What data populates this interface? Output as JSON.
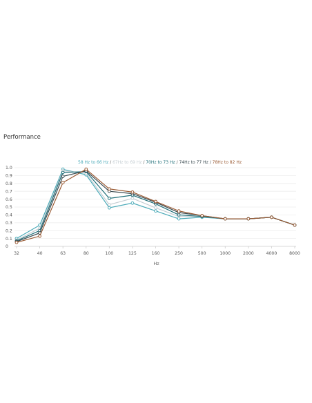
{
  "page": {
    "title": "Performance"
  },
  "chart_data": {
    "type": "line",
    "categories": [
      "32",
      "40",
      "63",
      "80",
      "100",
      "125",
      "160",
      "250",
      "500",
      "1000",
      "2000",
      "4000",
      "8000"
    ],
    "xlabel": "Hz",
    "ylabel": "",
    "ylim": [
      0,
      1.0
    ],
    "yticks": [
      0,
      0.1,
      0.2,
      0.3,
      0.4,
      0.5,
      0.6,
      0.7,
      0.8,
      0.9,
      1.0
    ],
    "ytick_labels": [
      "0",
      "0.1",
      "0.2",
      "0.3",
      "0.4",
      "0.5",
      "0.6",
      "0.7",
      "0.8",
      "0.9",
      "1.0"
    ],
    "legend_position": "top-center",
    "legend_separator": "/",
    "grid": true,
    "series": [
      {
        "name": "58 Hz to 66 Hz",
        "color": "#4aaab8",
        "values": [
          0.1,
          0.27,
          0.98,
          0.91,
          0.49,
          0.55,
          0.45,
          0.35,
          0.37,
          0.35,
          0.35,
          0.37,
          0.27
        ]
      },
      {
        "name": "67Hz to 69 Hz",
        "color": "#c4cdd2",
        "values": [
          0.08,
          0.23,
          0.96,
          0.93,
          0.53,
          0.61,
          0.49,
          0.38,
          0.38,
          0.35,
          0.35,
          0.37,
          0.27
        ]
      },
      {
        "name": "70Hz to 73 Hz",
        "color": "#1f6e78",
        "values": [
          0.07,
          0.2,
          0.94,
          0.95,
          0.61,
          0.65,
          0.54,
          0.4,
          0.38,
          0.35,
          0.35,
          0.37,
          0.27
        ]
      },
      {
        "name": "74Hz to 77 Hz",
        "color": "#3a4a50",
        "values": [
          0.06,
          0.17,
          0.89,
          0.96,
          0.7,
          0.67,
          0.56,
          0.43,
          0.39,
          0.35,
          0.35,
          0.37,
          0.27
        ]
      },
      {
        "name": "78Hz to 82 Hz",
        "color": "#9a5a33",
        "values": [
          0.05,
          0.13,
          0.81,
          0.98,
          0.73,
          0.69,
          0.57,
          0.45,
          0.39,
          0.35,
          0.35,
          0.37,
          0.27
        ]
      }
    ]
  }
}
